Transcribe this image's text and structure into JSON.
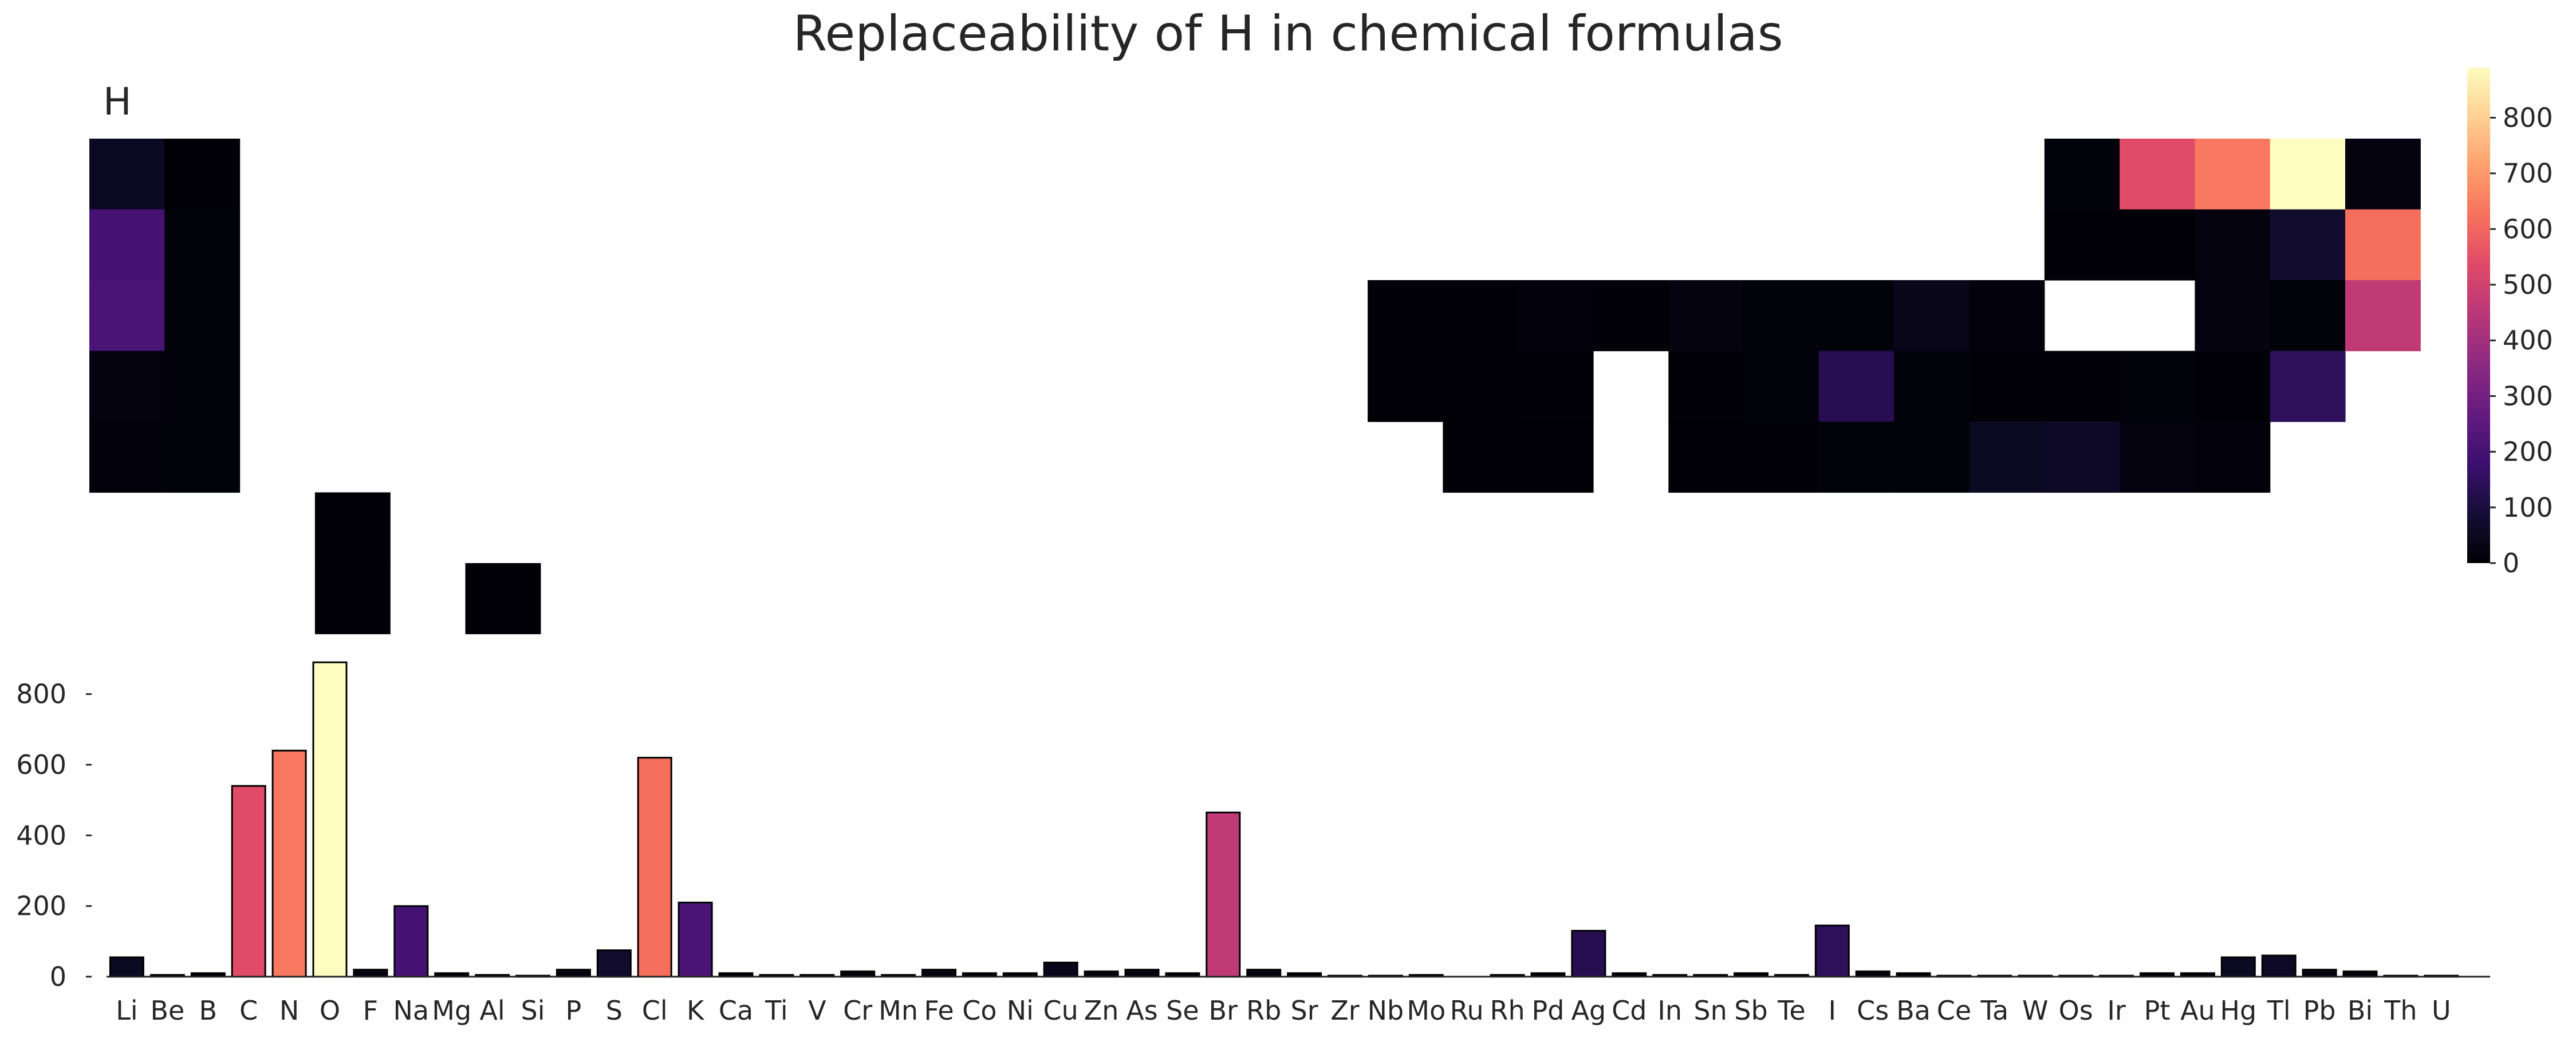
{
  "chart_data": [
    {
      "type": "heatmap",
      "title": "Replaceability of H in chemical formulas",
      "panel_label": "H",
      "colormap": "magma",
      "colorbar": {
        "min": 0,
        "max": 890,
        "ticks": [
          "0",
          "100",
          "200",
          "300",
          "400",
          "500",
          "600",
          "700",
          "800"
        ]
      },
      "grid_columns": 32,
      "grid_rows": 6,
      "cells": [
        {
          "el": "Li",
          "row": 1,
          "col": 0,
          "value": 55
        },
        {
          "el": "Be",
          "row": 1,
          "col": 1,
          "value": 5
        },
        {
          "el": "B",
          "row": 1,
          "col": 26,
          "value": 10
        },
        {
          "el": "C",
          "row": 1,
          "col": 27,
          "value": 540
        },
        {
          "el": "N",
          "row": 1,
          "col": 28,
          "value": 640
        },
        {
          "el": "O",
          "row": 1,
          "col": 29,
          "value": 890
        },
        {
          "el": "F",
          "row": 1,
          "col": 30,
          "value": 20
        },
        {
          "el": "Na",
          "row": 2,
          "col": 0,
          "value": 200
        },
        {
          "el": "Mg",
          "row": 2,
          "col": 1,
          "value": 10
        },
        {
          "el": "Al",
          "row": 2,
          "col": 26,
          "value": 5
        },
        {
          "el": "Si",
          "row": 2,
          "col": 27,
          "value": 3
        },
        {
          "el": "P",
          "row": 2,
          "col": 28,
          "value": 20
        },
        {
          "el": "S",
          "row": 2,
          "col": 29,
          "value": 75
        },
        {
          "el": "Cl",
          "row": 2,
          "col": 30,
          "value": 620
        },
        {
          "el": "K",
          "row": 3,
          "col": 0,
          "value": 210
        },
        {
          "el": "Ca",
          "row": 3,
          "col": 1,
          "value": 10
        },
        {
          "el": "Ti",
          "row": 3,
          "col": 17,
          "value": 5
        },
        {
          "el": "V",
          "row": 3,
          "col": 18,
          "value": 5
        },
        {
          "el": "Cr",
          "row": 3,
          "col": 19,
          "value": 15
        },
        {
          "el": "Mn",
          "row": 3,
          "col": 20,
          "value": 5
        },
        {
          "el": "Fe",
          "row": 3,
          "col": 21,
          "value": 20
        },
        {
          "el": "Co",
          "row": 3,
          "col": 22,
          "value": 10
        },
        {
          "el": "Ni",
          "row": 3,
          "col": 23,
          "value": 10
        },
        {
          "el": "Cu",
          "row": 3,
          "col": 24,
          "value": 40
        },
        {
          "el": "Zn",
          "row": 3,
          "col": 25,
          "value": 15
        },
        {
          "el": "As",
          "row": 3,
          "col": 28,
          "value": 20
        },
        {
          "el": "Se",
          "row": 3,
          "col": 29,
          "value": 10
        },
        {
          "el": "Br",
          "row": 3,
          "col": 30,
          "value": 465
        },
        {
          "el": "Rb",
          "row": 4,
          "col": 0,
          "value": 20
        },
        {
          "el": "Sr",
          "row": 4,
          "col": 1,
          "value": 10
        },
        {
          "el": "Zr",
          "row": 4,
          "col": 17,
          "value": 3
        },
        {
          "el": "Nb",
          "row": 4,
          "col": 18,
          "value": 3
        },
        {
          "el": "Mo",
          "row": 4,
          "col": 19,
          "value": 5
        },
        {
          "el": "Rh",
          "row": 4,
          "col": 21,
          "value": 5
        },
        {
          "el": "Pd",
          "row": 4,
          "col": 22,
          "value": 10
        },
        {
          "el": "Ag",
          "row": 4,
          "col": 23,
          "value": 130
        },
        {
          "el": "Cd",
          "row": 4,
          "col": 24,
          "value": 10
        },
        {
          "el": "In",
          "row": 4,
          "col": 25,
          "value": 5
        },
        {
          "el": "Sn",
          "row": 4,
          "col": 26,
          "value": 5
        },
        {
          "el": "Sb",
          "row": 4,
          "col": 27,
          "value": 10
        },
        {
          "el": "Te",
          "row": 4,
          "col": 28,
          "value": 5
        },
        {
          "el": "I",
          "row": 4,
          "col": 29,
          "value": 145
        },
        {
          "el": "Cs",
          "row": 5,
          "col": 0,
          "value": 15
        },
        {
          "el": "Ba",
          "row": 5,
          "col": 1,
          "value": 10
        },
        {
          "el": "Ta",
          "row": 5,
          "col": 18,
          "value": 3
        },
        {
          "el": "W",
          "row": 5,
          "col": 19,
          "value": 3
        },
        {
          "el": "Os",
          "row": 5,
          "col": 21,
          "value": 3
        },
        {
          "el": "Ir",
          "row": 5,
          "col": 22,
          "value": 3
        },
        {
          "el": "Pt",
          "row": 5,
          "col": 23,
          "value": 10
        },
        {
          "el": "Au",
          "row": 5,
          "col": 24,
          "value": 10
        },
        {
          "el": "Hg",
          "row": 5,
          "col": 25,
          "value": 55
        },
        {
          "el": "Tl",
          "row": 5,
          "col": 26,
          "value": 60
        },
        {
          "el": "Pb",
          "row": 5,
          "col": 27,
          "value": 20
        },
        {
          "el": "Bi",
          "row": 5,
          "col": 28,
          "value": 15
        },
        {
          "el": "Ce",
          "row": 6,
          "col": 3,
          "value": 3
        },
        {
          "el": "Th",
          "row": 7,
          "col": 3,
          "value": 3
        },
        {
          "el": "U",
          "row": 7,
          "col": 5,
          "value": 3
        }
      ]
    },
    {
      "type": "bar",
      "categories": [
        "Li",
        "Be",
        "B",
        "C",
        "N",
        "O",
        "F",
        "Na",
        "Mg",
        "Al",
        "Si",
        "P",
        "S",
        "Cl",
        "K",
        "Ca",
        "Ti",
        "V",
        "Cr",
        "Mn",
        "Fe",
        "Co",
        "Ni",
        "Cu",
        "Zn",
        "As",
        "Se",
        "Br",
        "Rb",
        "Sr",
        "Zr",
        "Nb",
        "Mo",
        "Ru",
        "Rh",
        "Pd",
        "Ag",
        "Cd",
        "In",
        "Sn",
        "Sb",
        "Te",
        "I",
        "Cs",
        "Ba",
        "Ce",
        "Ta",
        "W",
        "Os",
        "Ir",
        "Pt",
        "Au",
        "Hg",
        "Tl",
        "Pb",
        "Bi",
        "Th",
        "U"
      ],
      "values": [
        55,
        5,
        10,
        540,
        640,
        890,
        20,
        200,
        10,
        5,
        3,
        20,
        75,
        620,
        210,
        10,
        5,
        5,
        15,
        5,
        20,
        10,
        10,
        40,
        15,
        20,
        10,
        465,
        20,
        10,
        3,
        3,
        5,
        0,
        5,
        10,
        130,
        10,
        5,
        5,
        10,
        5,
        145,
        15,
        10,
        3,
        3,
        3,
        3,
        3,
        10,
        10,
        55,
        60,
        20,
        15,
        3,
        3
      ],
      "yticks": [
        "0",
        "200",
        "400",
        "600",
        "800"
      ],
      "ylim": [
        0,
        900
      ],
      "xlabel": "",
      "ylabel": ""
    }
  ]
}
